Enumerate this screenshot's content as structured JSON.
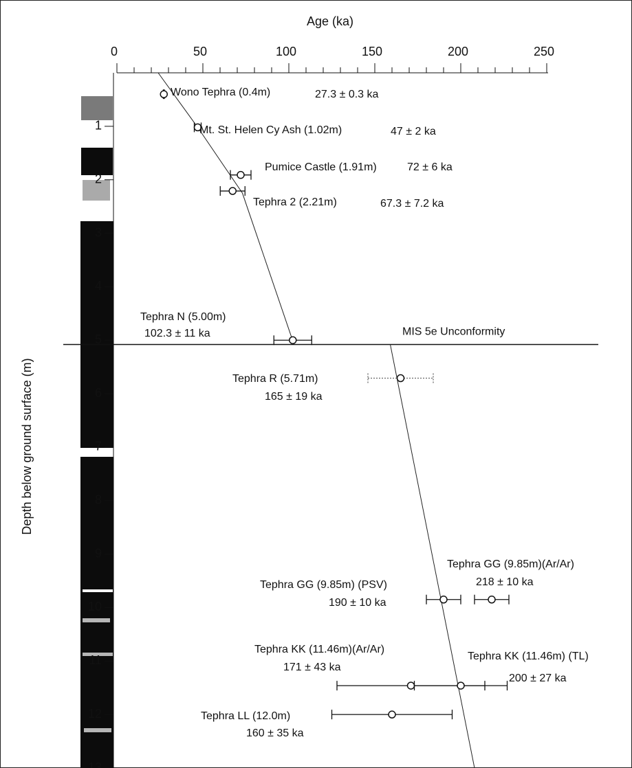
{
  "chart_data": {
    "type": "scatter",
    "xlabel": "Age (ka)",
    "ylabel": "Depth below ground surface (m)",
    "xlim": [
      0,
      250
    ],
    "xticks": [
      0,
      50,
      100,
      150,
      200,
      250
    ],
    "x_minor_ticks": [
      10,
      20,
      30,
      40,
      60,
      70,
      80,
      90,
      110,
      120,
      130,
      140,
      160,
      170,
      180,
      190,
      210,
      220,
      230,
      240
    ],
    "ylim": [
      0,
      13
    ],
    "yticks": [
      1,
      2,
      3,
      4,
      5,
      6,
      7,
      8,
      9,
      10,
      11,
      12,
      13
    ],
    "names": [
      "Wono Tephra (0.4m)",
      "Mt. St. Helen Cy Ash (1.02m)",
      "Pumice Castle (1.91m)",
      "Tephra 2 (2.21m)",
      "Tephra N (5.00m)",
      "Tephra R (5.71m)",
      "Tephra GG (9.85m) (PSV)",
      "Tephra GG (9.85m)(Ar/Ar)",
      "Tephra KK (11.46m)(Ar/Ar)",
      "Tephra KK (11.46m) (TL)",
      "Tephra LL (12.0m)"
    ],
    "depths": [
      0.4,
      1.02,
      1.91,
      2.21,
      5.0,
      5.71,
      9.85,
      9.85,
      11.46,
      11.46,
      12.0
    ],
    "ages": [
      27.3,
      47,
      72,
      67.3,
      102.3,
      165,
      190,
      218,
      171,
      200,
      160
    ],
    "errors": [
      0.3,
      2,
      6,
      7.2,
      11,
      19,
      10,
      10,
      43,
      27,
      35
    ],
    "value_labels": [
      "27.3 ± 0.3 ka",
      "47 ± 2 ka",
      "72 ± 6 ka",
      "67.3 ± 7.2  ka",
      "102.3 ± 11 ka",
      "165 ± 19 ka",
      "190 ± 10 ka",
      "218 ± 10 ka",
      "171 ± 43 ka",
      "200 ± 27 ka",
      "160 ± 35 ka"
    ],
    "age_model": {
      "x": [
        24,
        47,
        73,
        103,
        null,
        159,
        208
      ],
      "y": [
        0,
        1.02,
        2.25,
        5.08,
        null,
        5.08,
        13
      ]
    },
    "unconformity": {
      "depth": 5.08,
      "label": "MIS 5e Unconformity"
    }
  }
}
